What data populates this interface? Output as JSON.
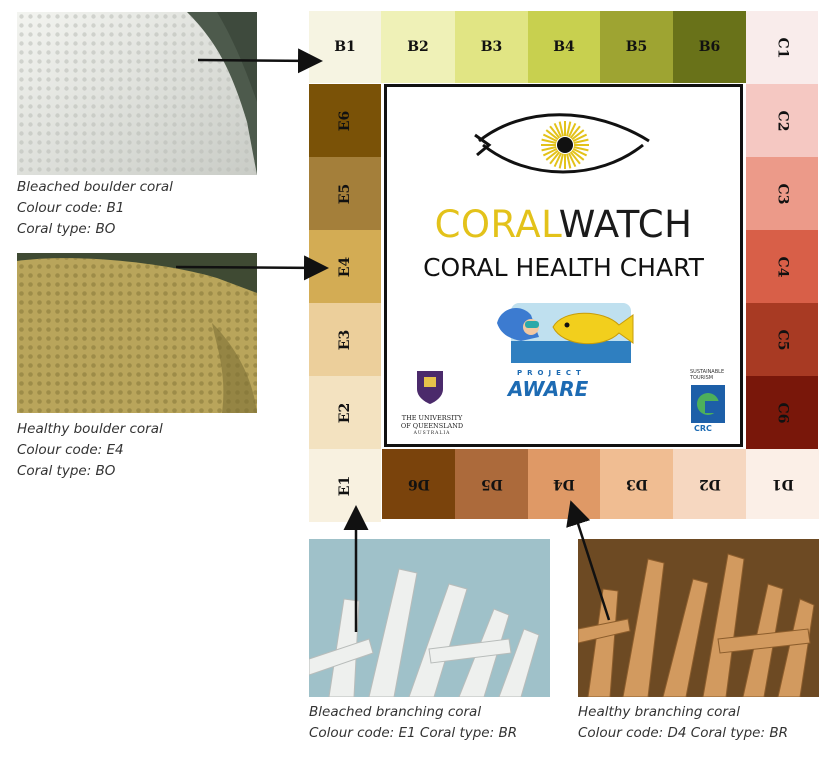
{
  "chart": {
    "title_part1": "CORAL",
    "title_part2": "WATCH",
    "subtitle": "CORAL HEALTH CHART",
    "colors": {
      "title_yellow": "#e3c21a",
      "title_dark": "#1a1a1a",
      "border": "#111111"
    }
  },
  "swatches": {
    "b": [
      {
        "label": "B1",
        "color": "#f6f4e2"
      },
      {
        "label": "B2",
        "color": "#eff1b7"
      },
      {
        "label": "B3",
        "color": "#e1e584"
      },
      {
        "label": "B4",
        "color": "#c8d04f"
      },
      {
        "label": "B5",
        "color": "#9ea432"
      },
      {
        "label": "B6",
        "color": "#697219"
      }
    ],
    "c": [
      {
        "label": "C1",
        "color": "#f9eceb"
      },
      {
        "label": "C2",
        "color": "#f5c8c2"
      },
      {
        "label": "C3",
        "color": "#ec9a89"
      },
      {
        "label": "C4",
        "color": "#d85f48"
      },
      {
        "label": "C5",
        "color": "#a83a23"
      },
      {
        "label": "C6",
        "color": "#79170a"
      }
    ],
    "d": [
      {
        "label": "D1",
        "color": "#fbefe7"
      },
      {
        "label": "D2",
        "color": "#f6d7c0"
      },
      {
        "label": "D3",
        "color": "#f0bd92"
      },
      {
        "label": "D4",
        "color": "#df9966"
      },
      {
        "label": "D5",
        "color": "#ac6a3b"
      },
      {
        "label": "D6",
        "color": "#7a430c"
      }
    ],
    "e": [
      {
        "label": "E1",
        "color": "#f8f1e0"
      },
      {
        "label": "E2",
        "color": "#f3e2c0"
      },
      {
        "label": "E3",
        "color": "#eccf9b"
      },
      {
        "label": "E4",
        "color": "#d3ac54"
      },
      {
        "label": "E5",
        "color": "#a47f3a"
      },
      {
        "label": "E6",
        "color": "#7a5207"
      }
    ]
  },
  "logos": {
    "uq_line1": "THE UNIVERSITY",
    "uq_line2": "OF QUEENSLAND",
    "uq_line3": "AUSTRALIA",
    "project": "PROJECT",
    "aware": "AWARE",
    "st_line1": "SUSTAINABLE",
    "st_line2": "TOURISM",
    "crc": "CRC"
  },
  "examples": {
    "bleached_boulder": {
      "line1": "Bleached boulder coral",
      "line2": "Colour code: B1",
      "line3": "Coral type: BO"
    },
    "healthy_boulder": {
      "line1": "Healthy boulder coral",
      "line2": "Colour code: E4",
      "line3": "Coral type: BO"
    },
    "bleached_branching": {
      "line1": "Bleached branching coral",
      "line2": "Colour code: E1 Coral type: BR"
    },
    "healthy_branching": {
      "line1": "Healthy branching coral",
      "line2": "Colour code: D4 Coral type: BR"
    }
  }
}
